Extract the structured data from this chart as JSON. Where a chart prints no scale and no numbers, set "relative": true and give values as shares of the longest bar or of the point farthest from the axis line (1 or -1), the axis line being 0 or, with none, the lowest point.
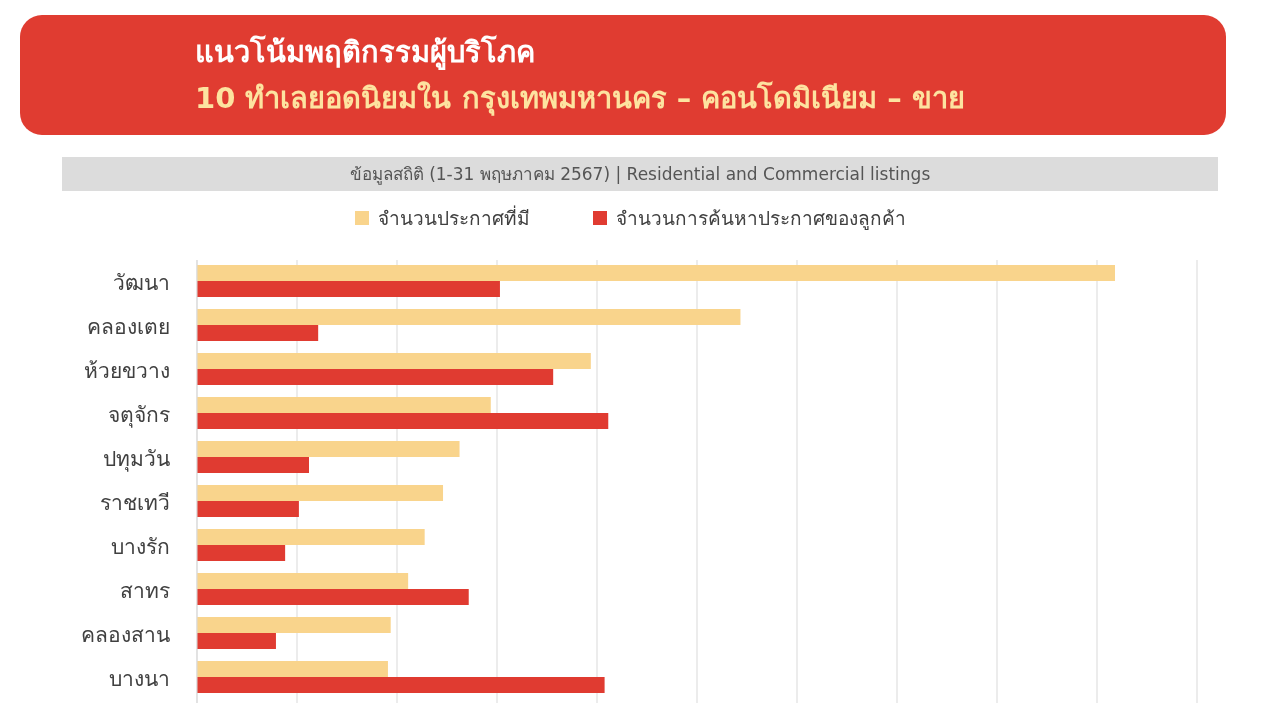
{
  "chart_data": {
    "type": "bar",
    "orientation": "horizontal",
    "relative": true,
    "title": "แนวโน้มพฤติกรรมผู้บริโภค",
    "subtitle": "10 ทำเลยอดนิยมใน กรุงเทพมหานคร – คอนโดมิเนียม – ขาย",
    "annotations": [
      "ข้อมูลสถิติ (1-31 พฤษภาคม 2567) | Residential and Commercial listings"
    ],
    "legend": "top",
    "grid": "x",
    "categories": [
      "วัฒนา",
      "คลองเตย",
      "ห้วยขวาง",
      "จตุจักร",
      "ปทุมวัน",
      "ราชเทวี",
      "บางรัก",
      "สาทร",
      "คลองสาน",
      "บางนา"
    ],
    "series": [
      {
        "name": "จำนวนประกาศที่มี",
        "color": "#f9d48c",
        "values": [
          1,
          0.592,
          0.429,
          0.32,
          0.286,
          0.268,
          0.248,
          0.23,
          0.211,
          0.208
        ]
      },
      {
        "name": "จำนวนการค้นหาประกาศของลูกค้า",
        "color": "#e03b31",
        "values": [
          0.33,
          0.132,
          0.388,
          0.448,
          0.122,
          0.111,
          0.096,
          0.296,
          0.086,
          0.444
        ]
      }
    ]
  }
}
